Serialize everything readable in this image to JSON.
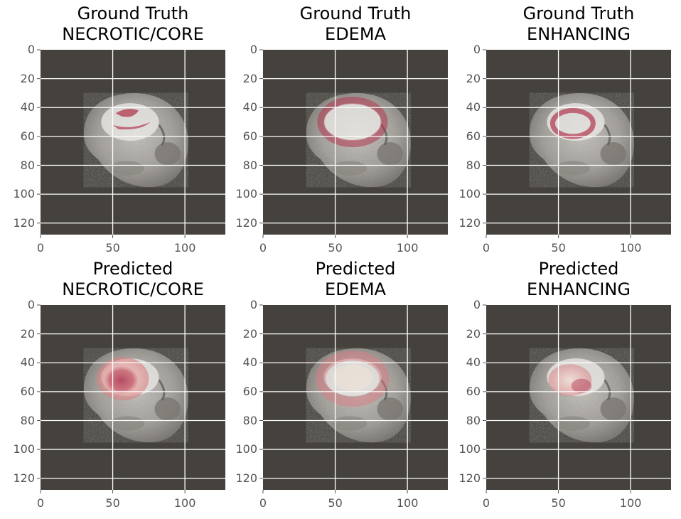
{
  "figure": {
    "panels": [
      {
        "title_line1": "Ground Truth",
        "title_line2": "NECROTIC/CORE",
        "kind": "gt-necrotic"
      },
      {
        "title_line1": "Ground Truth",
        "title_line2": "EDEMA",
        "kind": "gt-edema"
      },
      {
        "title_line1": "Ground Truth",
        "title_line2": "ENHANCING",
        "kind": "gt-enhancing"
      },
      {
        "title_line1": "Predicted",
        "title_line2": "NECROTIC/CORE",
        "kind": "pred-necrotic"
      },
      {
        "title_line1": "Predicted",
        "title_line2": "EDEMA",
        "kind": "pred-edema"
      },
      {
        "title_line1": "Predicted",
        "title_line2": "ENHANCING",
        "kind": "pred-enhancing"
      }
    ],
    "x_ticks": [
      "0",
      "50",
      "100"
    ],
    "y_ticks": [
      "0",
      "20",
      "40",
      "60",
      "80",
      "100",
      "120"
    ],
    "colors": {
      "background": "#45423d",
      "grid": "#ffffff",
      "tissue_light": "#d8d5d0",
      "tissue_mid": "#9a9792",
      "overlay_red": "#b0384f",
      "overlay_salmon": "#e4a2a6"
    }
  }
}
